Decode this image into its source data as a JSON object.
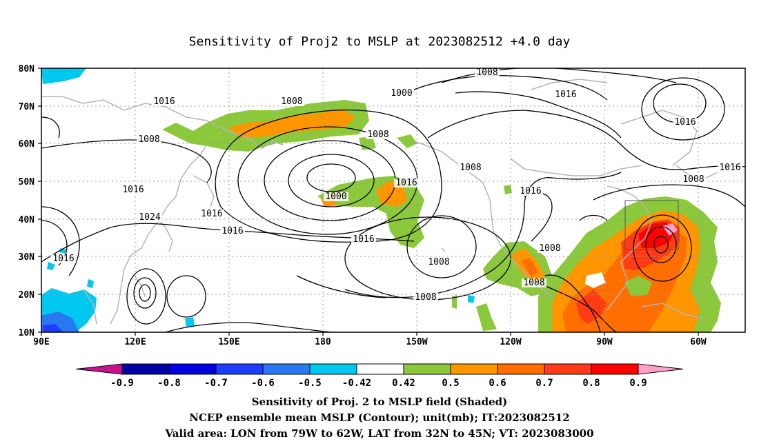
{
  "title": "Sensitivity of Proj2 to MSLP at 2023082512 +4.0 day",
  "axes": {
    "lat_labels": [
      "80N",
      "70N",
      "60N",
      "50N",
      "40N",
      "30N",
      "20N",
      "10N"
    ],
    "lon_labels": [
      "90E",
      "120E",
      "150E",
      "180",
      "150W",
      "120W",
      "90W",
      "60W"
    ]
  },
  "colorbar": {
    "labels": [
      "-0.9",
      "-0.8",
      "-0.7",
      "-0.6",
      "-0.5",
      "-0.42",
      "0.42",
      "0.5",
      "0.6",
      "0.7",
      "0.8",
      "0.9"
    ],
    "colors": {
      "neg_extend": "#c8148c",
      "neg": [
        "#0000a0",
        "#0000e0",
        "#1e3cff",
        "#2878f0",
        "#00c8f0"
      ],
      "neutral": "#ffffff",
      "pos": [
        "#8cc83c",
        "#ff9600",
        "#ff6e00",
        "#ff3c14",
        "#ff0000"
      ],
      "pos_extend": "#ffa0c8"
    }
  },
  "contour_labels": [
    "1008",
    "1016",
    "1008",
    "1000",
    "1016",
    "1008",
    "1008",
    "1016",
    "1000",
    "1016",
    "1008",
    "1016",
    "1016",
    "1008",
    "1016",
    "1016",
    "1024",
    "1016",
    "1016",
    "1008",
    "1008",
    "1016",
    "1008",
    "1008"
  ],
  "captions": {
    "line1": "Sensitivity of Proj. 2 to MSLP field (Shaded)",
    "line2": "NCEP ensemble mean MSLP (Contour); unit(mb); IT:2023082512",
    "line3": "Valid area: LON from 79W to 62W, LAT from 32N to 45N; VT: 2023083000"
  }
}
